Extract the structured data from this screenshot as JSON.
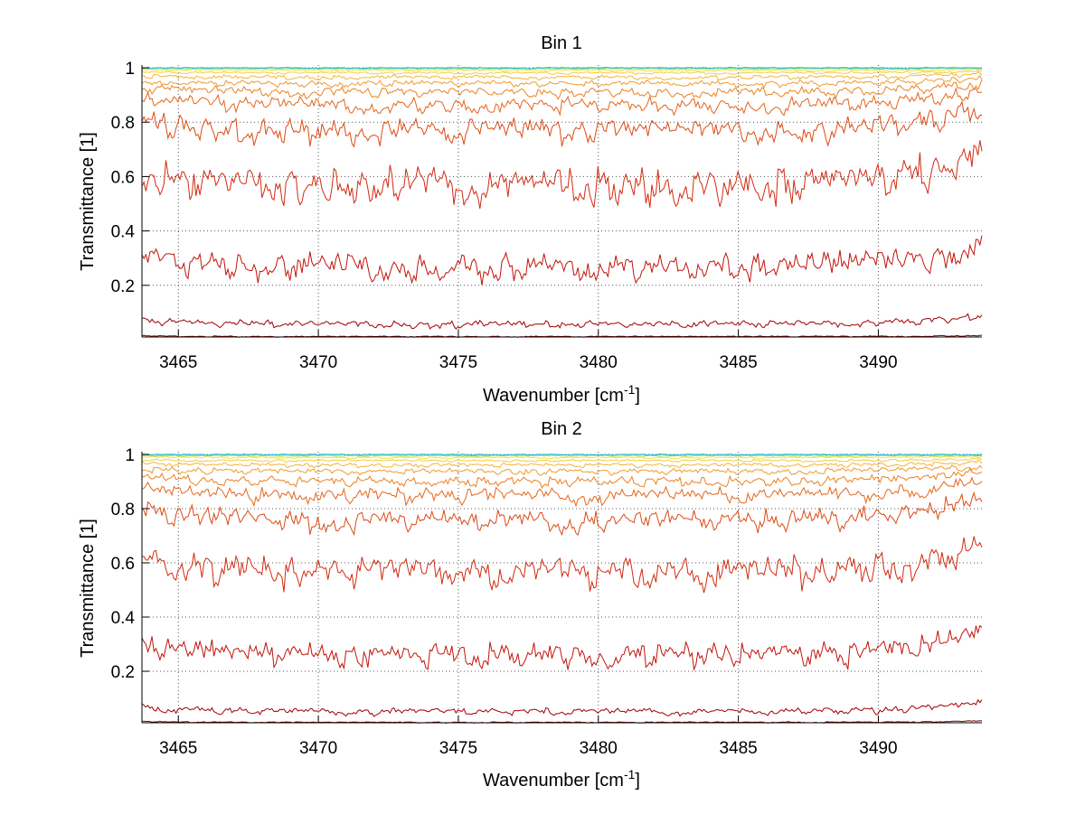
{
  "chart_data": [
    {
      "type": "line",
      "title": "Bin 1",
      "xlabel_main": "Wavenumber [cm",
      "xlabel_sup": "-1",
      "xlabel_tail": "]",
      "ylabel": "Transmittance [1]",
      "xlim": [
        3463.7,
        3493.7
      ],
      "ylim": [
        0.01,
        1.01
      ],
      "xticks": [
        3465,
        3470,
        3475,
        3480,
        3485,
        3490
      ],
      "xtick_labels": [
        "3465",
        "3470",
        "3475",
        "3480",
        "3485",
        "3490"
      ],
      "yticks": [
        0.2,
        0.4,
        0.6,
        0.8,
        1
      ],
      "ytick_labels": [
        "0.2",
        "0.4",
        "0.6",
        "0.8",
        "1"
      ],
      "grid": true,
      "series": [
        {
          "color": "#7f0000",
          "base": 0.012,
          "amp": 0.002,
          "edge": 0.003
        },
        {
          "color": "#a00000",
          "base": 0.06,
          "amp": 0.012,
          "edge": 0.02
        },
        {
          "color": "#c0140a",
          "base": 0.28,
          "amp": 0.045,
          "edge": 0.05
        },
        {
          "color": "#d22a10",
          "base": 0.585,
          "amp": 0.06,
          "edge": 0.07
        },
        {
          "color": "#dc4a14",
          "base": 0.78,
          "amp": 0.04,
          "edge": 0.05
        },
        {
          "color": "#e5661a",
          "base": 0.87,
          "amp": 0.025,
          "edge": 0.03
        },
        {
          "color": "#ec8020",
          "base": 0.915,
          "amp": 0.016,
          "edge": 0.02
        },
        {
          "color": "#f09a2c",
          "base": 0.945,
          "amp": 0.01,
          "edge": 0.012
        },
        {
          "color": "#f4b438",
          "base": 0.967,
          "amp": 0.007,
          "edge": 0.008
        },
        {
          "color": "#f6cc40",
          "base": 0.982,
          "amp": 0.004,
          "edge": 0.004
        },
        {
          "color": "#f2e04a",
          "base": 0.991,
          "amp": 0.003,
          "edge": 0.002
        },
        {
          "color": "#c8e85a",
          "base": 0.996,
          "amp": 0.002,
          "edge": 0.001
        },
        {
          "color": "#70d8a0",
          "base": 0.999,
          "amp": 0.002,
          "edge": 0.0
        },
        {
          "color": "#20b8d8",
          "base": 1.0,
          "amp": 0.002,
          "edge": 0.0
        }
      ]
    },
    {
      "type": "line",
      "title": "Bin 2",
      "xlabel_main": "Wavenumber [cm",
      "xlabel_sup": "-1",
      "xlabel_tail": "]",
      "ylabel": "Transmittance [1]",
      "xlim": [
        3463.7,
        3493.7
      ],
      "ylim": [
        0.01,
        1.01
      ],
      "xticks": [
        3465,
        3470,
        3475,
        3480,
        3485,
        3490
      ],
      "xtick_labels": [
        "3465",
        "3470",
        "3475",
        "3480",
        "3485",
        "3490"
      ],
      "yticks": [
        0.2,
        0.4,
        0.6,
        0.8,
        1
      ],
      "ytick_labels": [
        "0.2",
        "0.4",
        "0.6",
        "0.8",
        "1"
      ],
      "grid": true,
      "series": [
        {
          "color": "#7f0000",
          "base": 0.012,
          "amp": 0.002,
          "edge": 0.003
        },
        {
          "color": "#a00000",
          "base": 0.055,
          "amp": 0.012,
          "edge": 0.02
        },
        {
          "color": "#c0140a",
          "base": 0.27,
          "amp": 0.04,
          "edge": 0.05
        },
        {
          "color": "#d22a10",
          "base": 0.58,
          "amp": 0.05,
          "edge": 0.06
        },
        {
          "color": "#dc4a14",
          "base": 0.765,
          "amp": 0.035,
          "edge": 0.05
        },
        {
          "color": "#e5661a",
          "base": 0.855,
          "amp": 0.025,
          "edge": 0.03
        },
        {
          "color": "#ec8020",
          "base": 0.905,
          "amp": 0.016,
          "edge": 0.02
        },
        {
          "color": "#f09a2c",
          "base": 0.94,
          "amp": 0.01,
          "edge": 0.012
        },
        {
          "color": "#f4b438",
          "base": 0.962,
          "amp": 0.007,
          "edge": 0.008
        },
        {
          "color": "#f6cc40",
          "base": 0.978,
          "amp": 0.004,
          "edge": 0.004
        },
        {
          "color": "#f2e04a",
          "base": 0.989,
          "amp": 0.003,
          "edge": 0.002
        },
        {
          "color": "#c8e85a",
          "base": 0.995,
          "amp": 0.002,
          "edge": 0.001
        },
        {
          "color": "#70d8a0",
          "base": 0.998,
          "amp": 0.002,
          "edge": 0.0
        },
        {
          "color": "#20b8d8",
          "base": 1.0,
          "amp": 0.002,
          "edge": 0.0
        }
      ]
    }
  ]
}
